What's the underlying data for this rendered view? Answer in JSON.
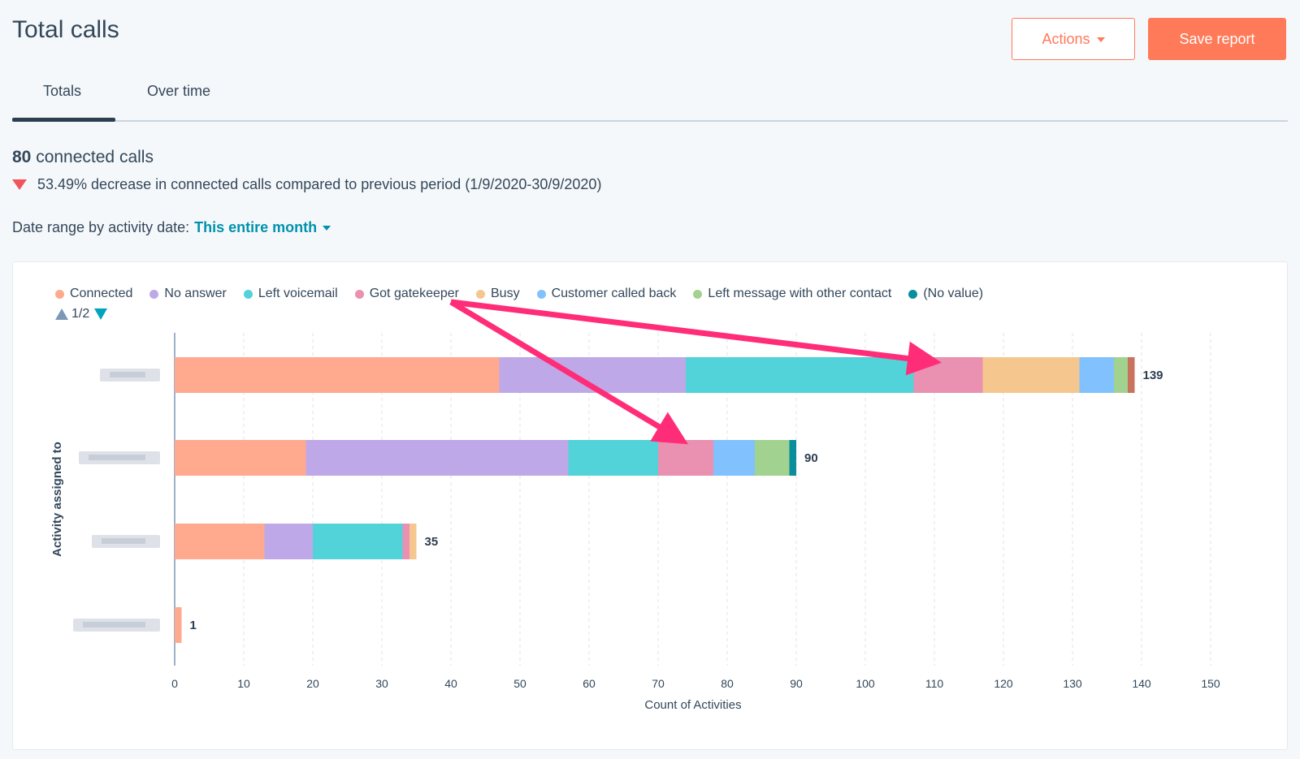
{
  "header": {
    "title": "Total calls",
    "actions_label": "Actions",
    "save_label": "Save report"
  },
  "tabs": [
    {
      "label": "Totals",
      "active": true
    },
    {
      "label": "Over time",
      "active": false
    }
  ],
  "summary": {
    "value": "80",
    "value_label": "connected calls",
    "change_text": "53.49% decrease in connected calls compared to previous period (1/9/2020-30/9/2020)"
  },
  "filter": {
    "label": "Date range by activity date:",
    "value": "This entire month"
  },
  "legend_pager": "1/2",
  "colors": {
    "brand_orange": "#ff7a59",
    "link_teal": "#0091ae",
    "decrease_red": "#f2545b",
    "annotation_arrow": "#ff2d78"
  },
  "chart_data": {
    "type": "bar",
    "orientation": "horizontal",
    "stacked": true,
    "xlabel": "Count of Activities",
    "ylabel": "Activity assigned to",
    "xlim": [
      0,
      150
    ],
    "xticks": [
      0,
      10,
      20,
      30,
      40,
      50,
      60,
      70,
      80,
      90,
      100,
      110,
      120,
      130,
      140,
      150
    ],
    "grid": "vertical dashed",
    "legend_position": "top-left",
    "categories": [
      "",
      "",
      "",
      ""
    ],
    "series": [
      {
        "name": "Connected",
        "color": "#ffa98f",
        "values": [
          47,
          19,
          13,
          1
        ]
      },
      {
        "name": "No answer",
        "color": "#bfa8e8",
        "values": [
          27,
          38,
          7,
          0
        ]
      },
      {
        "name": "Left voicemail",
        "color": "#51d3d9",
        "values": [
          33,
          13,
          13,
          0
        ]
      },
      {
        "name": "Got gatekeeper",
        "color": "#ea90b1",
        "values": [
          10,
          8,
          1,
          0
        ]
      },
      {
        "name": "Busy",
        "color": "#f5c78e",
        "values": [
          14,
          0,
          1,
          0
        ]
      },
      {
        "name": "Customer called back",
        "color": "#81c1fd",
        "values": [
          5,
          6,
          0,
          0
        ]
      },
      {
        "name": "Left message with other contact",
        "color": "#a2d28f",
        "values": [
          2,
          5,
          0,
          0
        ]
      },
      {
        "name": "(No value)",
        "color": "#0b8e9c",
        "values": [
          0,
          1,
          0,
          0
        ]
      },
      {
        "name": "",
        "color": "#c9725e",
        "values": [
          1,
          0,
          0,
          0
        ]
      }
    ],
    "totals": [
      139,
      90,
      35,
      1
    ]
  }
}
